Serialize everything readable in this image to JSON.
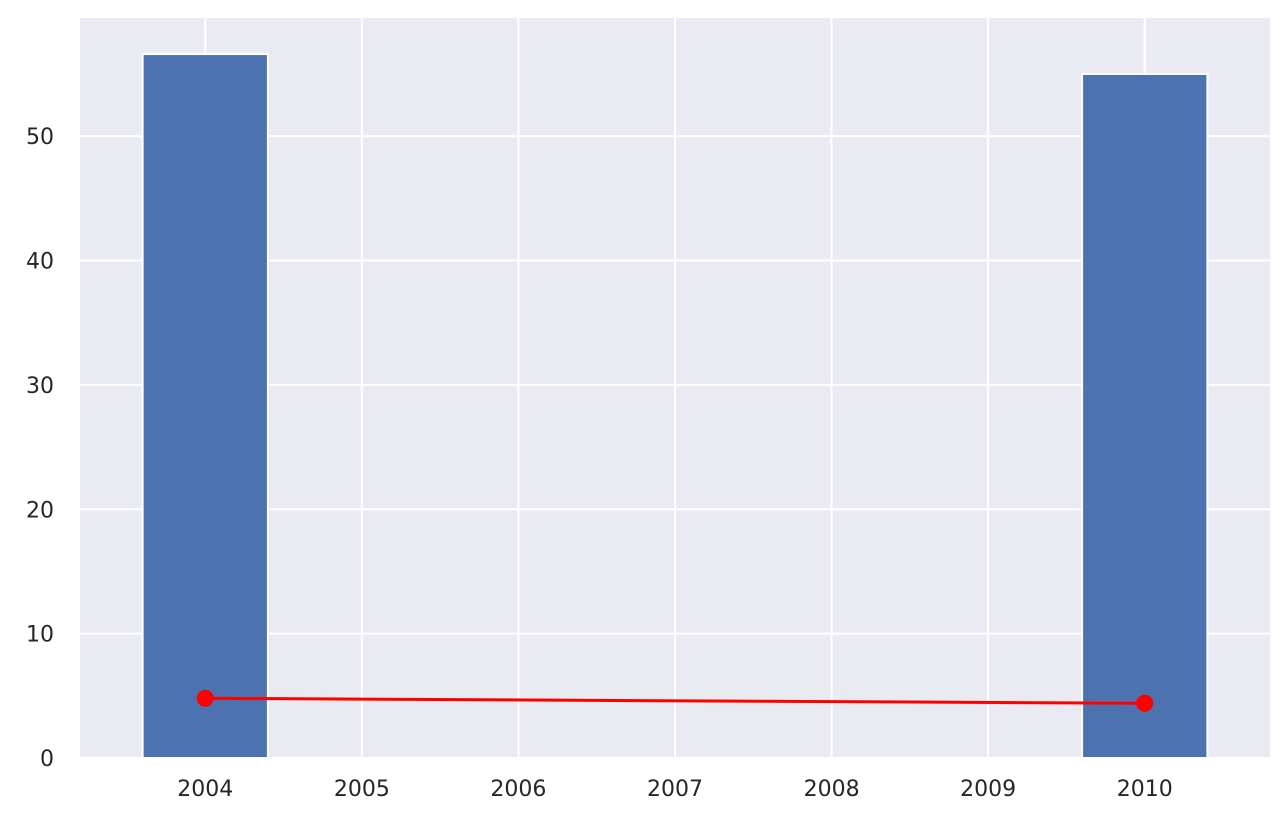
{
  "chart_data": {
    "type": "bar",
    "title": "",
    "xlabel": "",
    "ylabel": "",
    "x": [
      2004,
      2010
    ],
    "xticks": [
      "2004",
      "2005",
      "2006",
      "2007",
      "2008",
      "2009",
      "2010"
    ],
    "yticks": [
      "0",
      "10",
      "20",
      "30",
      "40",
      "50"
    ],
    "xlim": [
      2003.2,
      2010.8
    ],
    "ylim": [
      0,
      59.5
    ],
    "grid": true,
    "background_color": "#eaeaf2",
    "series": [
      {
        "type": "bar",
        "x": [
          2004,
          2010
        ],
        "values": [
          56.6,
          55.0
        ],
        "color": "#4c72b0"
      },
      {
        "type": "line",
        "x": [
          2004,
          2010
        ],
        "values": [
          4.8,
          4.4
        ],
        "color": "#ff0000",
        "marker": "circle"
      }
    ]
  }
}
